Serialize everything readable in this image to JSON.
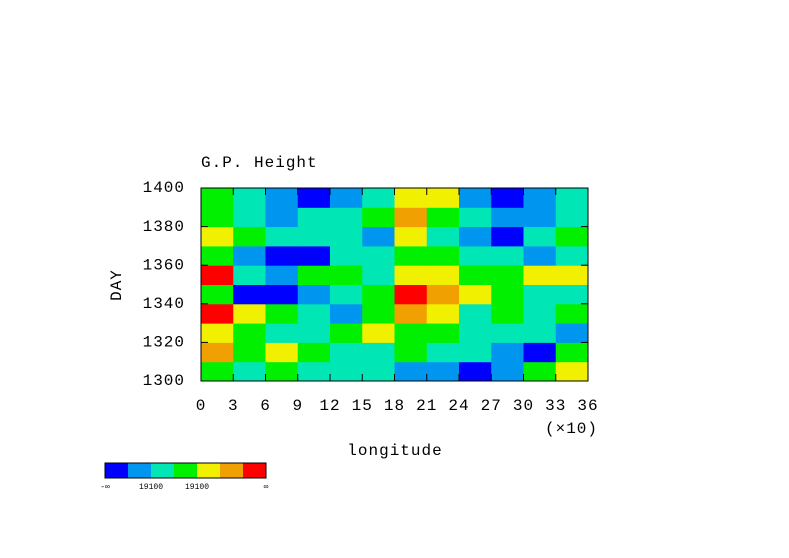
{
  "chart_data": {
    "type": "heatmap",
    "title": "G.P. Height",
    "xlabel": "longitude",
    "ylabel": "DAY",
    "x_scale_label": "(×10)",
    "x": [
      0,
      3,
      6,
      9,
      12,
      15,
      18,
      21,
      24,
      27,
      30,
      33,
      36
    ],
    "y": [
      1300,
      1310,
      1320,
      1330,
      1340,
      1350,
      1360,
      1370,
      1380,
      1390,
      1400
    ],
    "values": [
      [
        3,
        2,
        3,
        2,
        2,
        2,
        1,
        1,
        0,
        1,
        3,
        4
      ],
      [
        5,
        3,
        4,
        3,
        2,
        2,
        3,
        2,
        2,
        1,
        0,
        3
      ],
      [
        4,
        3,
        2,
        2,
        3,
        4,
        3,
        3,
        2,
        2,
        2,
        1
      ],
      [
        6,
        4,
        3,
        2,
        1,
        3,
        5,
        4,
        2,
        3,
        2,
        3
      ],
      [
        3,
        0,
        0,
        1,
        2,
        3,
        6,
        5,
        4,
        3,
        2,
        2
      ],
      [
        6,
        2,
        1,
        3,
        3,
        2,
        4,
        4,
        3,
        3,
        4,
        4
      ],
      [
        3,
        1,
        0,
        0,
        2,
        2,
        3,
        3,
        2,
        2,
        1,
        2
      ],
      [
        4,
        3,
        2,
        2,
        2,
        1,
        4,
        2,
        1,
        0,
        2,
        3
      ],
      [
        3,
        2,
        1,
        2,
        2,
        3,
        5,
        3,
        2,
        1,
        1,
        2
      ],
      [
        3,
        2,
        1,
        0,
        1,
        2,
        4,
        4,
        1,
        0,
        1,
        2
      ]
    ],
    "xlim": [
      0,
      36
    ],
    "ylim": [
      1300,
      1400
    ],
    "xticks": [
      0,
      3,
      6,
      9,
      12,
      15,
      18,
      21,
      24,
      27,
      30,
      33,
      36
    ],
    "yticks": [
      1300,
      1320,
      1340,
      1360,
      1380,
      1400
    ],
    "colorbar": {
      "colors": [
        "#0000ff",
        "#0096f0",
        "#00e6b4",
        "#00f000",
        "#f0f000",
        "#f0a000",
        "#ff0000"
      ],
      "labels": [
        "-∞",
        "19100",
        "19100",
        "∞"
      ]
    }
  }
}
